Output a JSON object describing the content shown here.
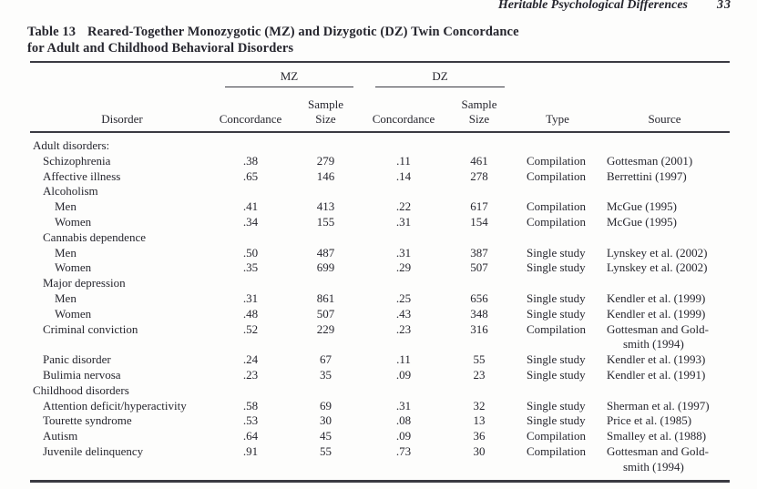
{
  "page": {
    "running_head": "Heritable Psychological Differences",
    "page_number": "33",
    "title": {
      "label": "Table 13",
      "line1": "Reared-Together Monozygotic (MZ) and Dizygotic (DZ) Twin Concordance",
      "line2": "for Adult and Childhood Behavioral Disorders"
    }
  },
  "colors": {
    "text": "#26262e",
    "rule": "#3a3a42",
    "background": "#fdfdfc"
  },
  "table": {
    "group_headers": {
      "mz": "MZ",
      "dz": "DZ"
    },
    "columns": {
      "disorder": "Disorder",
      "concordance": "Concordance",
      "sample_line1": "Sample",
      "sample_line2": "Size",
      "type": "Type",
      "source": "Source"
    },
    "rows": [
      {
        "label": "Adult disorders:",
        "indent": 0
      },
      {
        "label": "Schizophrenia",
        "indent": 1,
        "mz_concordance": ".38",
        "mz_sample": "279",
        "dz_concordance": ".11",
        "dz_sample": "461",
        "type": "Compilation",
        "source": "Gottesman (2001)"
      },
      {
        "label": "Affective illness",
        "indent": 1,
        "mz_concordance": ".65",
        "mz_sample": "146",
        "dz_concordance": ".14",
        "dz_sample": "278",
        "type": "Compilation",
        "source": "Berrettini (1997)"
      },
      {
        "label": "Alcoholism",
        "indent": 1
      },
      {
        "label": "Men",
        "indent": 2,
        "mz_concordance": ".41",
        "mz_sample": "413",
        "dz_concordance": ".22",
        "dz_sample": "617",
        "type": "Compilation",
        "source": "McGue (1995)"
      },
      {
        "label": "Women",
        "indent": 2,
        "mz_concordance": ".34",
        "mz_sample": "155",
        "dz_concordance": ".31",
        "dz_sample": "154",
        "type": "Compilation",
        "source": "McGue (1995)"
      },
      {
        "label": "Cannabis dependence",
        "indent": 1
      },
      {
        "label": "Men",
        "indent": 2,
        "mz_concordance": ".50",
        "mz_sample": "487",
        "dz_concordance": ".31",
        "dz_sample": "387",
        "type": "Single study",
        "source": "Lynskey et al. (2002)"
      },
      {
        "label": "Women",
        "indent": 2,
        "mz_concordance": ".35",
        "mz_sample": "699",
        "dz_concordance": ".29",
        "dz_sample": "507",
        "type": "Single study",
        "source": "Lynskey et al. (2002)"
      },
      {
        "label": "Major depression",
        "indent": 1
      },
      {
        "label": "Men",
        "indent": 2,
        "mz_concordance": ".31",
        "mz_sample": "861",
        "dz_concordance": ".25",
        "dz_sample": "656",
        "type": "Single study",
        "source": "Kendler et al. (1999)"
      },
      {
        "label": "Women",
        "indent": 2,
        "mz_concordance": ".48",
        "mz_sample": "507",
        "dz_concordance": ".43",
        "dz_sample": "348",
        "type": "Single study",
        "source": "Kendler et al. (1999)"
      },
      {
        "label": "Criminal conviction",
        "indent": 1,
        "mz_concordance": ".52",
        "mz_sample": "229",
        "dz_concordance": ".23",
        "dz_sample": "316",
        "type": "Compilation",
        "source": "Gottesman and Gold-",
        "source_line2": "smith (1994)"
      },
      {
        "label": "Panic disorder",
        "indent": 1,
        "mz_concordance": ".24",
        "mz_sample": "67",
        "dz_concordance": ".11",
        "dz_sample": "55",
        "type": "Single study",
        "source": "Kendler et al. (1993)"
      },
      {
        "label": "Bulimia nervosa",
        "indent": 1,
        "mz_concordance": ".23",
        "mz_sample": "35",
        "dz_concordance": ".09",
        "dz_sample": "23",
        "type": "Single study",
        "source": "Kendler et al. (1991)"
      },
      {
        "label": "Childhood disorders",
        "indent": 0
      },
      {
        "label": "Attention deficit/hyperactivity",
        "indent": 1,
        "mz_concordance": ".58",
        "mz_sample": "69",
        "dz_concordance": ".31",
        "dz_sample": "32",
        "type": "Single study",
        "source": "Sherman et al. (1997)"
      },
      {
        "label": "Tourette syndrome",
        "indent": 1,
        "mz_concordance": ".53",
        "mz_sample": "30",
        "dz_concordance": ".08",
        "dz_sample": "13",
        "type": "Single study",
        "source": "Price et al. (1985)"
      },
      {
        "label": "Autism",
        "indent": 1,
        "mz_concordance": ".64",
        "mz_sample": "45",
        "dz_concordance": ".09",
        "dz_sample": "36",
        "type": "Compilation",
        "source": "Smalley et al. (1988)"
      },
      {
        "label": "Juvenile delinquency",
        "indent": 1,
        "mz_concordance": ".91",
        "mz_sample": "55",
        "dz_concordance": ".73",
        "dz_sample": "30",
        "type": "Compilation",
        "source": "Gottesman and Gold-",
        "source_line2": "smith (1994)"
      }
    ]
  }
}
